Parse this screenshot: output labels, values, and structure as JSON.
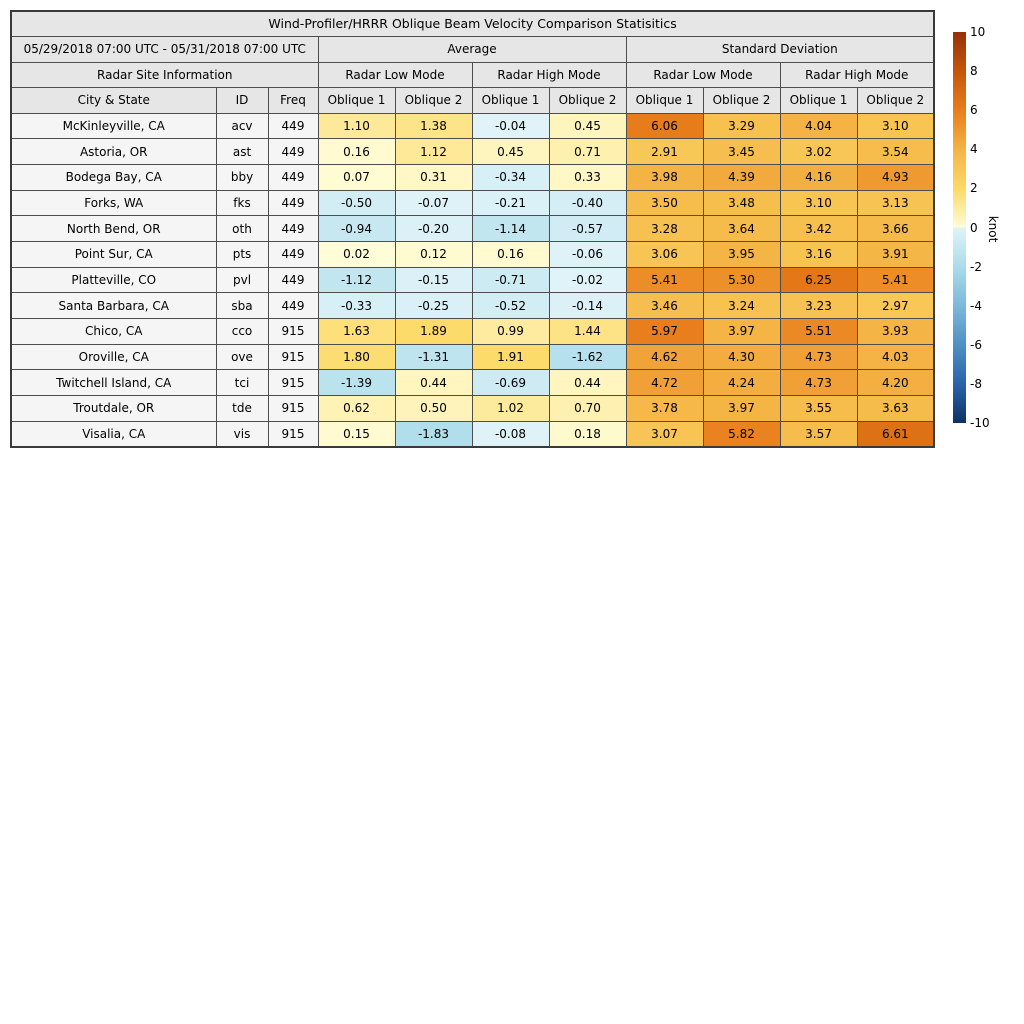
{
  "chart_data": {
    "type": "heatmap",
    "title": "Wind-Profiler/HRRR Oblique Beam Velocity Comparison Statisitics",
    "date_range": "05/29/2018 07:00 UTC - 05/31/2018 07:00 UTC",
    "group_headers": [
      "Average",
      "Standard Deviation"
    ],
    "site_info_header": "Radar Site Information",
    "mode_headers": [
      "Radar Low Mode",
      "Radar High Mode",
      "Radar Low Mode",
      "Radar High Mode"
    ],
    "column_headers": [
      "City & State",
      "ID",
      "Freq",
      "Oblique 1",
      "Oblique 2",
      "Oblique 1",
      "Oblique 2",
      "Oblique 1",
      "Oblique 2",
      "Oblique 1",
      "Oblique 2"
    ],
    "rows": [
      {
        "city": "McKinleyville, CA",
        "id": "acv",
        "freq": "449",
        "values": [
          1.1,
          1.38,
          -0.04,
          0.45,
          6.06,
          3.29,
          4.04,
          3.1
        ]
      },
      {
        "city": "Astoria, OR",
        "id": "ast",
        "freq": "449",
        "values": [
          0.16,
          1.12,
          0.45,
          0.71,
          2.91,
          3.45,
          3.02,
          3.54
        ]
      },
      {
        "city": "Bodega Bay, CA",
        "id": "bby",
        "freq": "449",
        "values": [
          0.07,
          0.31,
          -0.34,
          0.33,
          3.98,
          4.39,
          4.16,
          4.93
        ]
      },
      {
        "city": "Forks, WA",
        "id": "fks",
        "freq": "449",
        "values": [
          -0.5,
          -0.07,
          -0.21,
          -0.4,
          3.5,
          3.48,
          3.1,
          3.13
        ]
      },
      {
        "city": "North Bend, OR",
        "id": "oth",
        "freq": "449",
        "values": [
          -0.94,
          -0.2,
          -1.14,
          -0.57,
          3.28,
          3.64,
          3.42,
          3.66
        ]
      },
      {
        "city": "Point Sur, CA",
        "id": "pts",
        "freq": "449",
        "values": [
          0.02,
          0.12,
          0.16,
          -0.06,
          3.06,
          3.95,
          3.16,
          3.91
        ]
      },
      {
        "city": "Platteville, CO",
        "id": "pvl",
        "freq": "449",
        "values": [
          -1.12,
          -0.15,
          -0.71,
          -0.02,
          5.41,
          5.3,
          6.25,
          5.41
        ]
      },
      {
        "city": "Santa Barbara, CA",
        "id": "sba",
        "freq": "449",
        "values": [
          -0.33,
          -0.25,
          -0.52,
          -0.14,
          3.46,
          3.24,
          3.23,
          2.97
        ]
      },
      {
        "city": "Chico, CA",
        "id": "cco",
        "freq": "915",
        "values": [
          1.63,
          1.89,
          0.99,
          1.44,
          5.97,
          3.97,
          5.51,
          3.93
        ]
      },
      {
        "city": "Oroville, CA",
        "id": "ove",
        "freq": "915",
        "values": [
          1.8,
          -1.31,
          1.91,
          -1.62,
          4.62,
          4.3,
          4.73,
          4.03
        ]
      },
      {
        "city": "Twitchell Island, CA",
        "id": "tci",
        "freq": "915",
        "values": [
          -1.39,
          0.44,
          -0.69,
          0.44,
          4.72,
          4.24,
          4.73,
          4.2
        ]
      },
      {
        "city": "Troutdale, OR",
        "id": "tde",
        "freq": "915",
        "values": [
          0.62,
          0.5,
          1.02,
          0.7,
          3.78,
          3.97,
          3.55,
          3.63
        ]
      },
      {
        "city": "Visalia, CA",
        "id": "vis",
        "freq": "915",
        "values": [
          0.15,
          -1.83,
          -0.08,
          0.18,
          3.07,
          5.82,
          3.57,
          6.61
        ]
      }
    ],
    "colorbar": {
      "label": "knot",
      "min": -10,
      "max": 10,
      "ticks": [
        10,
        8,
        6,
        4,
        2,
        0,
        -2,
        -4,
        -6,
        -8,
        -10
      ]
    },
    "colormap": {
      "neg": [
        [
          -10,
          "#0d3166"
        ],
        [
          -8,
          "#2a63a9"
        ],
        [
          -6,
          "#4e91c5"
        ],
        [
          -4,
          "#7cb9da"
        ],
        [
          -2,
          "#abdcea"
        ],
        [
          0,
          "#e0f3f8"
        ]
      ],
      "pos": [
        [
          0,
          "#fffdd8"
        ],
        [
          2,
          "#fcd965"
        ],
        [
          4,
          "#f4b445"
        ],
        [
          6,
          "#e87d1b"
        ],
        [
          8,
          "#c4550a"
        ],
        [
          10,
          "#96300a"
        ]
      ]
    }
  },
  "colors": {
    "header_bg": "#e6e6e6",
    "label_cell_bg": "#f5f5f5",
    "border": "#4d4d4d",
    "page_bg": "#ffffff"
  }
}
